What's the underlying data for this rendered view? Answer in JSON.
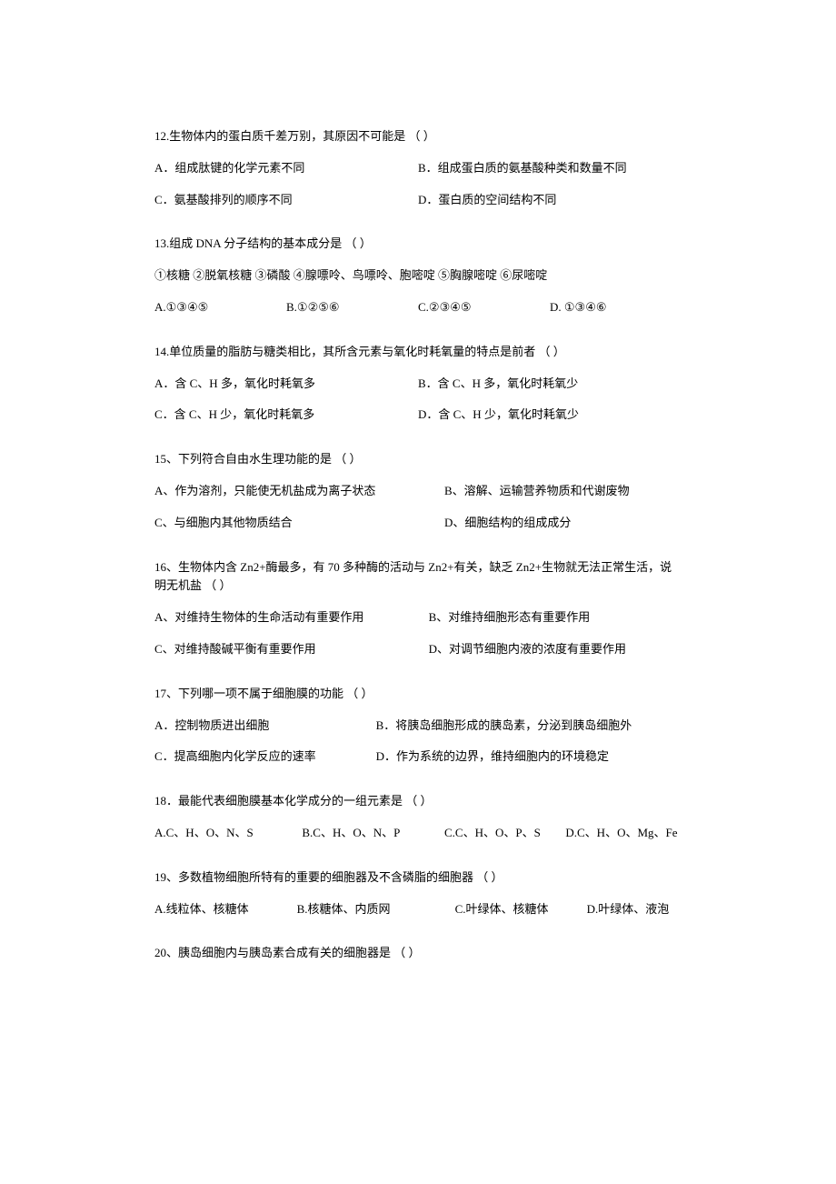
{
  "questions": [
    {
      "number": "12",
      "text": "12.生物体内的蛋白质千差万别，其原因不可能是 （   ）",
      "options": [
        {
          "label": "A．组成肽键的化学元素不同"
        },
        {
          "label": "B．组成蛋白质的氨基酸种类和数量不同"
        },
        {
          "label": "C．氨基酸排列的顺序不同"
        },
        {
          "label": "D．蛋白质的空间结构不同"
        }
      ]
    },
    {
      "number": "13",
      "text": "13.组成 DNA 分子结构的基本成分是                 （   ）",
      "subtext": "①核糖 ②脱氧核糖 ③磷酸 ④腺嘌呤、鸟嘌呤、胞嘧啶 ⑤胸腺嘧啶  ⑥尿嘧啶",
      "options": [
        {
          "label": "A.①③④⑤"
        },
        {
          "label": "B.①②⑤⑥"
        },
        {
          "label": "C.②③④⑤"
        },
        {
          "label": "D. ①③④⑥"
        }
      ]
    },
    {
      "number": "14",
      "text": "14.单位质量的脂肪与糖类相比，其所含元素与氧化时耗氧量的特点是前者 （    ）",
      "options": [
        {
          "label": "A．含 C、H 多，氧化时耗氧多"
        },
        {
          "label": "B．含 C、H 多，氧化时耗氧少"
        },
        {
          "label": "C．含 C、H 少，氧化时耗氧多"
        },
        {
          "label": "D．含 C、H 少，氧化时耗氧少"
        }
      ]
    },
    {
      "number": "15",
      "text": "15、下列符合自由水生理功能的是 （    ）",
      "options": [
        {
          "label": "A、作为溶剂，只能使无机盐成为离子状态"
        },
        {
          "label": "B、溶解、运输营养物质和代谢废物"
        },
        {
          "label": "C、与细胞内其他物质结合"
        },
        {
          "label": "D、细胞结构的组成成分"
        }
      ]
    },
    {
      "number": "16",
      "text": "16、生物体内含 Zn2+酶最多，有 70 多种酶的活动与 Zn2+有关，缺乏 Zn2+生物就无法正常生活，说明无机盐                       （   ）",
      "options": [
        {
          "label": "A、对维持生物体的生命活动有重要作用"
        },
        {
          "label": "B、对维持细胞形态有重要作用"
        },
        {
          "label": "C、对维持酸碱平衡有重要作用"
        },
        {
          "label": "D、对调节细胞内液的浓度有重要作用"
        }
      ]
    },
    {
      "number": "17",
      "text": "17、下列哪一项不属于细胞膜的功能             （    ）",
      "options": [
        {
          "label": "A．控制物质进出细胞"
        },
        {
          "label": "B．将胰岛细胞形成的胰岛素，分泌到胰岛细胞外"
        },
        {
          "label": "C．提高细胞内化学反应的速率"
        },
        {
          "label": "D．作为系统的边界，维持细胞内的环境稳定"
        }
      ]
    },
    {
      "number": "18",
      "text": "18．最能代表细胞膜基本化学成分的一组元素是   （    ）",
      "options": [
        {
          "label": "A.C、H、O、N、S"
        },
        {
          "label": "B.C、H、O、N、P"
        },
        {
          "label": "C.C、H、O、P、S"
        },
        {
          "label": "D.C、H、O、Mg、Fe"
        }
      ]
    },
    {
      "number": "19",
      "text": "19、多数植物细胞所特有的重要的细胞器及不含磷脂的细胞器    （   ）",
      "options": [
        {
          "label": "A.线粒体、核糖体"
        },
        {
          "label": "B.核糖体、内质网"
        },
        {
          "label": "C.叶绿体、核糖体"
        },
        {
          "label": "D.叶绿体、液泡"
        }
      ]
    },
    {
      "number": "20",
      "text": "20、胰岛细胞内与胰岛素合成有关的细胞器是                     （   ）"
    }
  ]
}
